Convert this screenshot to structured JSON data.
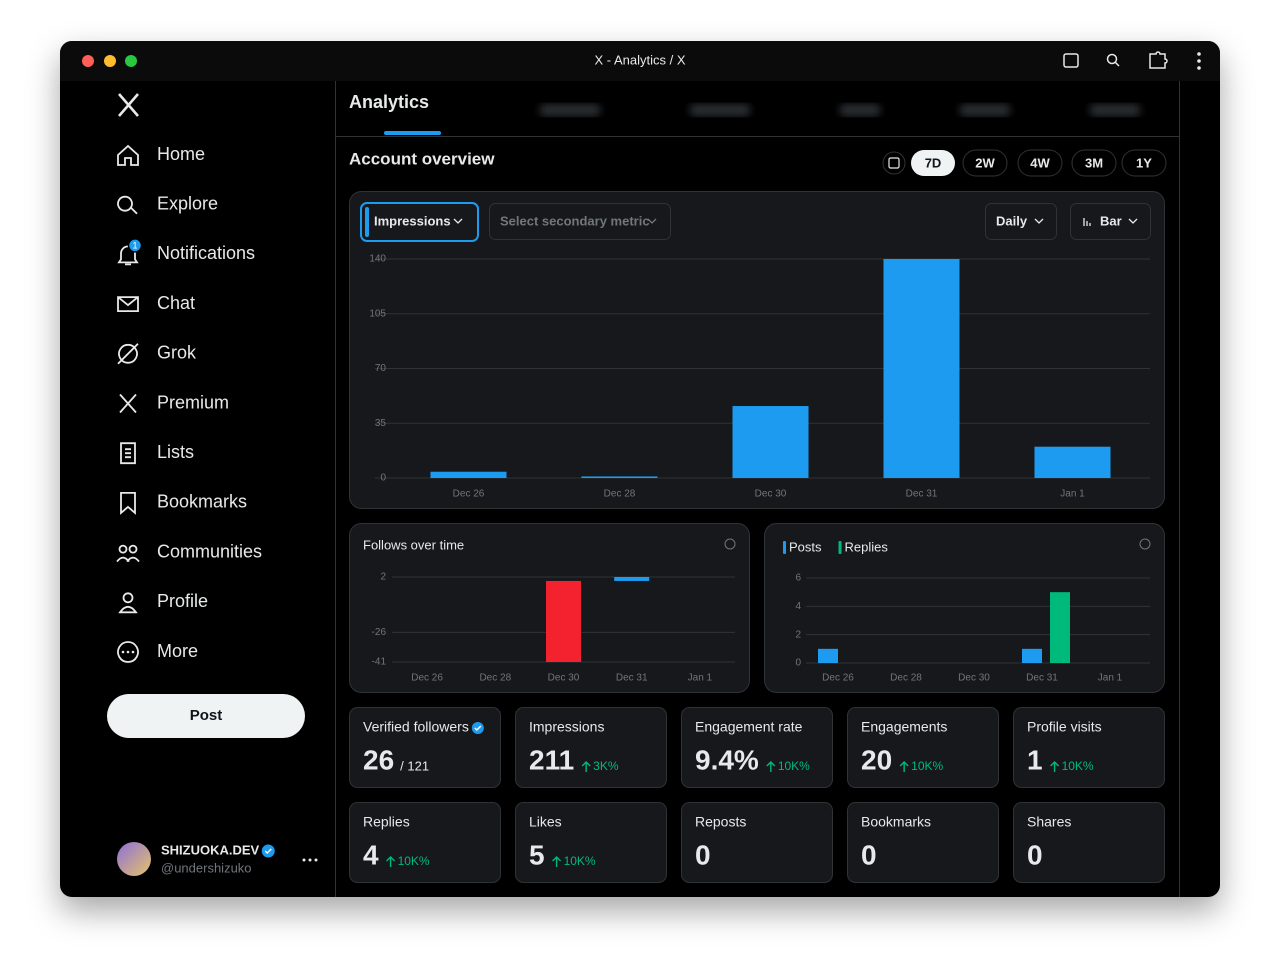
{
  "window": {
    "title": "X - Analytics / X"
  },
  "nav": {
    "items": [
      "Home",
      "Explore",
      "Notifications",
      "Chat",
      "Grok",
      "Premium",
      "Lists",
      "Bookmarks",
      "Communities",
      "Profile",
      "More"
    ],
    "notification_badge": "1",
    "post_button": "Post"
  },
  "account": {
    "name": "SHIZUOKA.DEV",
    "handle": "@undershizuko"
  },
  "header": {
    "title": "Analytics"
  },
  "overview": {
    "title": "Account overview",
    "ranges": [
      "7D",
      "2W",
      "4W",
      "3M",
      "1Y"
    ],
    "selected_range": "7D",
    "primary_metric": "Impressions",
    "secondary_metric": "Select secondary metric",
    "interval": "Daily",
    "chart_style": "Bar"
  },
  "chart_data": [
    {
      "type": "bar",
      "categories": [
        "Dec 26",
        "Dec 28",
        "Dec 30",
        "Dec 31",
        "Jan 1"
      ],
      "values": [
        4,
        1,
        46,
        140,
        20
      ],
      "color": "#1d9bf0",
      "ylim": [
        0,
        140
      ],
      "yticks": [
        0,
        35,
        70,
        105,
        140
      ],
      "grid": true
    },
    {
      "type": "bar",
      "title": "Follows over time",
      "categories": [
        "Dec 26",
        "Dec 28",
        "Dec 30",
        "Dec 31",
        "Jan 1"
      ],
      "values": [
        0,
        0,
        -41,
        2,
        0
      ],
      "color": "#1d9bf0",
      "negative_color": "#f4212e",
      "ylim": [
        -41,
        2
      ],
      "yticks": [
        -41,
        -26,
        2
      ],
      "grid": true
    },
    {
      "type": "grouped_bar",
      "categories": [
        "Dec 26",
        "Dec 28",
        "Dec 30",
        "Dec 31",
        "Jan 1"
      ],
      "series": [
        {
          "name": "Posts",
          "color": "#1d9bf0",
          "values": [
            1,
            0,
            0,
            1,
            0
          ]
        },
        {
          "name": "Replies",
          "color": "#00ba7c",
          "values": [
            0,
            0,
            0,
            5,
            0
          ]
        }
      ],
      "ylim": [
        0,
        6
      ],
      "yticks": [
        0,
        2,
        4,
        6
      ],
      "grid": true
    }
  ],
  "stats": [
    {
      "label": "Verified followers",
      "value": "26",
      "total": "/ 121"
    },
    {
      "label": "Impressions",
      "value": "211",
      "change": "3K%"
    },
    {
      "label": "Engagement rate",
      "value": "9.4%",
      "change": "10K%"
    },
    {
      "label": "Engagements",
      "value": "20",
      "change": "10K%"
    },
    {
      "label": "Profile visits",
      "value": "1",
      "change": "10K%"
    },
    {
      "label": "Replies",
      "value": "4",
      "change": "10K%"
    },
    {
      "label": "Likes",
      "value": "5",
      "change": "10K%"
    },
    {
      "label": "Reposts",
      "value": "0"
    },
    {
      "label": "Bookmarks",
      "value": "0"
    },
    {
      "label": "Shares",
      "value": "0"
    }
  ]
}
